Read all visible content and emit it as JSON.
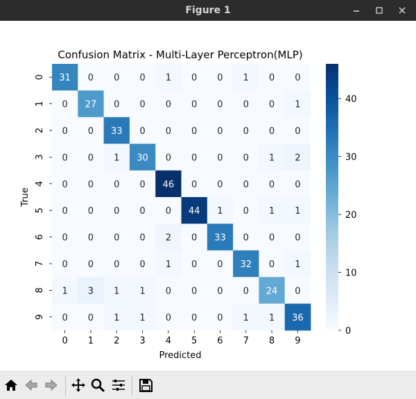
{
  "window": {
    "title": "Figure 1",
    "controls": [
      "minimize-icon",
      "maximize-icon",
      "close-icon"
    ]
  },
  "toolbar": {
    "buttons": [
      "home-icon",
      "back-icon",
      "forward-icon",
      "pan-icon",
      "zoom-icon",
      "configure-subplots-icon",
      "save-icon"
    ]
  },
  "chart_data": {
    "type": "heatmap",
    "title": "Confusion Matrix - Multi-Layer Perceptron(MLP)",
    "xlabel": "Predicted",
    "ylabel": "True",
    "x_categories": [
      "0",
      "1",
      "2",
      "3",
      "4",
      "5",
      "6",
      "7",
      "8",
      "9"
    ],
    "y_categories": [
      "0",
      "1",
      "2",
      "3",
      "4",
      "5",
      "6",
      "7",
      "8",
      "9"
    ],
    "values": [
      [
        31,
        0,
        0,
        0,
        1,
        0,
        0,
        1,
        0,
        0
      ],
      [
        0,
        27,
        0,
        0,
        0,
        0,
        0,
        0,
        0,
        1
      ],
      [
        0,
        0,
        33,
        0,
        0,
        0,
        0,
        0,
        0,
        0
      ],
      [
        0,
        0,
        1,
        30,
        0,
        0,
        0,
        0,
        1,
        2
      ],
      [
        0,
        0,
        0,
        0,
        46,
        0,
        0,
        0,
        0,
        0
      ],
      [
        0,
        0,
        0,
        0,
        0,
        44,
        1,
        0,
        1,
        1
      ],
      [
        0,
        0,
        0,
        0,
        2,
        0,
        33,
        0,
        0,
        0
      ],
      [
        0,
        0,
        0,
        0,
        1,
        0,
        0,
        32,
        0,
        1
      ],
      [
        1,
        3,
        1,
        1,
        0,
        0,
        0,
        0,
        24,
        0
      ],
      [
        0,
        0,
        1,
        1,
        0,
        0,
        0,
        1,
        1,
        36
      ]
    ],
    "colormap": "Blues",
    "colorbar": {
      "vmin": 0,
      "vmax": 46,
      "ticks": [
        "0",
        "10",
        "20",
        "30",
        "40"
      ]
    },
    "annotate": true
  }
}
